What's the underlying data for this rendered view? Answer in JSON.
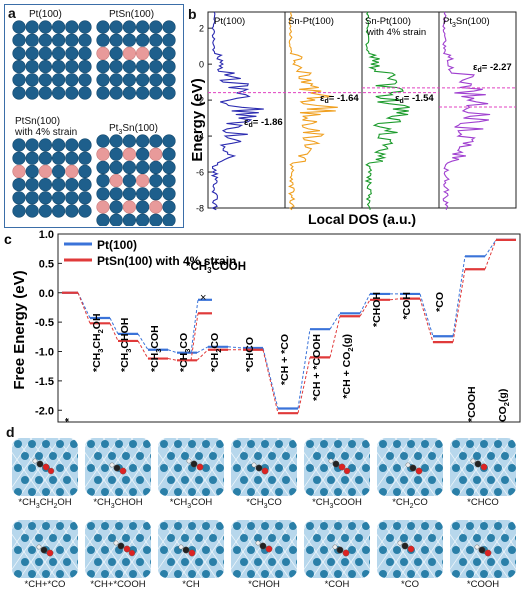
{
  "panel_a": {
    "letter": "a",
    "labels": [
      "Pt(100)",
      "PtSn(100)",
      "PtSn(100)",
      "with 4% strain",
      "Pt",
      "3",
      "Sn(100)"
    ],
    "colors": {
      "pt": "#1e5f8c",
      "sn": "#e89a9a",
      "border": "#3b6ea8"
    }
  },
  "panel_b": {
    "letter": "b",
    "ylabel": "Energy (eV)",
    "xlabel": "Local DOS (a.u.)",
    "yticks": [
      "2",
      "0",
      "-2",
      "-4",
      "-6",
      "-8"
    ],
    "columns": [
      {
        "name": "Pt(100)",
        "color": "#2b2bb0",
        "ed_label": "ε",
        "ed_sub": "d",
        "ed_value": "= -1.86"
      },
      {
        "name": "Sn-Pt(100)",
        "color": "#f0a020",
        "ed_label": "ε",
        "ed_sub": "d",
        "ed_value": "= -1.64"
      },
      {
        "name": "Sn-Pt(100)",
        "name2": "with 4% strain",
        "color": "#1a9a2a",
        "ed_label": "ε",
        "ed_sub": "d",
        "ed_value": "= -1.54"
      },
      {
        "name": "Pt",
        "name_sub": "3",
        "name3": "Sn(100)",
        "color": "#a040d0",
        "ed_label": "ε",
        "ed_sub": "d",
        "ed_value": "= -2.27"
      }
    ],
    "fermi_color": "#e040c0"
  },
  "panel_c": {
    "letter": "c",
    "ylabel": "Free Energy (eV)",
    "yticks": [
      "1.0",
      "0.5",
      "0.0",
      "-0.5",
      "-1.0",
      "-1.5",
      "-2.0"
    ],
    "legend": [
      {
        "name": "Pt(100)",
        "color": "#3a73d9"
      },
      {
        "name": "PtSn(100) with 4% strain",
        "color": "#e03a3a"
      }
    ],
    "chart_data": {
      "type": "line",
      "ylim": [
        -2.2,
        1.0
      ],
      "states": [
        "*",
        "*CH3CH2OH",
        "*CH3CHOH",
        "*CH3COH",
        "*CH3CO",
        "*CH2CO",
        "*CHCO",
        "*CH+*CO",
        "*CH+*COOH",
        "*CH+CO2(g)",
        "*CHOH",
        "*COH",
        "*CO",
        "*COOH",
        "CO2(g)"
      ],
      "series": [
        {
          "name": "Pt(100)",
          "values": [
            0.0,
            -0.43,
            -0.7,
            -0.97,
            -1.02,
            -0.92,
            -0.94,
            -1.97,
            -0.62,
            -0.35,
            -0.02,
            -0.02,
            -0.74,
            0.62,
            0.9
          ]
        },
        {
          "name": "PtSn(100) with 4% strain",
          "values": [
            0.0,
            -0.52,
            -0.82,
            -1.12,
            -1.15,
            -0.97,
            -0.97,
            -2.05,
            -1.1,
            -0.4,
            -0.12,
            -0.1,
            -0.84,
            0.4,
            0.9
          ]
        }
      ],
      "side_branch": {
        "label": "*CH3COOH",
        "pt_value": -0.12,
        "ptsn_value": -0.35
      },
      "x_marker": "×"
    },
    "state_labels": [
      {
        "main": "*",
        "sub": ""
      },
      {
        "main": "*CH",
        "sub": "3",
        "rest": "CH",
        "sub2": "2",
        "rest2": "OH"
      },
      {
        "main": "*CH",
        "sub": "3",
        "rest": "CHOH"
      },
      {
        "main": "*CH",
        "sub": "3",
        "rest": "COH"
      },
      {
        "main": "*CH",
        "sub": "3",
        "rest": "CO"
      },
      {
        "main": "*CH",
        "sub": "2",
        "rest": "CO"
      },
      {
        "main": "*CHCO",
        "sub": ""
      },
      {
        "main": "*CH + *CO",
        "sub": ""
      },
      {
        "main": "*CH + *COOH",
        "sub": ""
      },
      {
        "main": "*CH + CO",
        "sub": "2",
        "rest": "(g)"
      },
      {
        "main": "*CHOH",
        "sub": ""
      },
      {
        "main": "*COH",
        "sub": ""
      },
      {
        "main": "*CO",
        "sub": ""
      },
      {
        "main": "*COOH",
        "sub": ""
      },
      {
        "main": "CO",
        "sub": "2",
        "rest": "(g)"
      }
    ],
    "branch_label": {
      "main": "*CH",
      "sub": "3",
      "rest": "COOH"
    }
  },
  "panel_d": {
    "letter": "d",
    "tiles": [
      {
        "label": "*CH3CH2OH",
        "l1": "*CH",
        "s1": "3",
        "l2": "CH",
        "s2": "2",
        "l3": "OH"
      },
      {
        "label": "*CH3CHOH",
        "l1": "*CH",
        "s1": "3",
        "l2": "CHOH"
      },
      {
        "label": "*CH3COH",
        "l1": "*CH",
        "s1": "3",
        "l2": "COH"
      },
      {
        "label": "*CH3CO",
        "l1": "*CH",
        "s1": "3",
        "l2": "CO"
      },
      {
        "label": "*CH3COOH",
        "l1": "*CH",
        "s1": "3",
        "l2": "COOH"
      },
      {
        "label": "*CH2CO",
        "l1": "*CH",
        "s1": "2",
        "l2": "CO"
      },
      {
        "label": "*CHCO",
        "l1": "*CHCO"
      },
      {
        "label": "*CH+*CO",
        "l1": "*CH+*CO"
      },
      {
        "label": "*CH+*COOH",
        "l1": "*CH+*COOH"
      },
      {
        "label": "*CH",
        "l1": "*CH"
      },
      {
        "label": "*CHOH",
        "l1": "*CHOH"
      },
      {
        "label": "*COH",
        "l1": "*COH"
      },
      {
        "label": "*CO",
        "l1": "*CO"
      },
      {
        "label": "*COOH",
        "l1": "*COOH"
      }
    ]
  }
}
